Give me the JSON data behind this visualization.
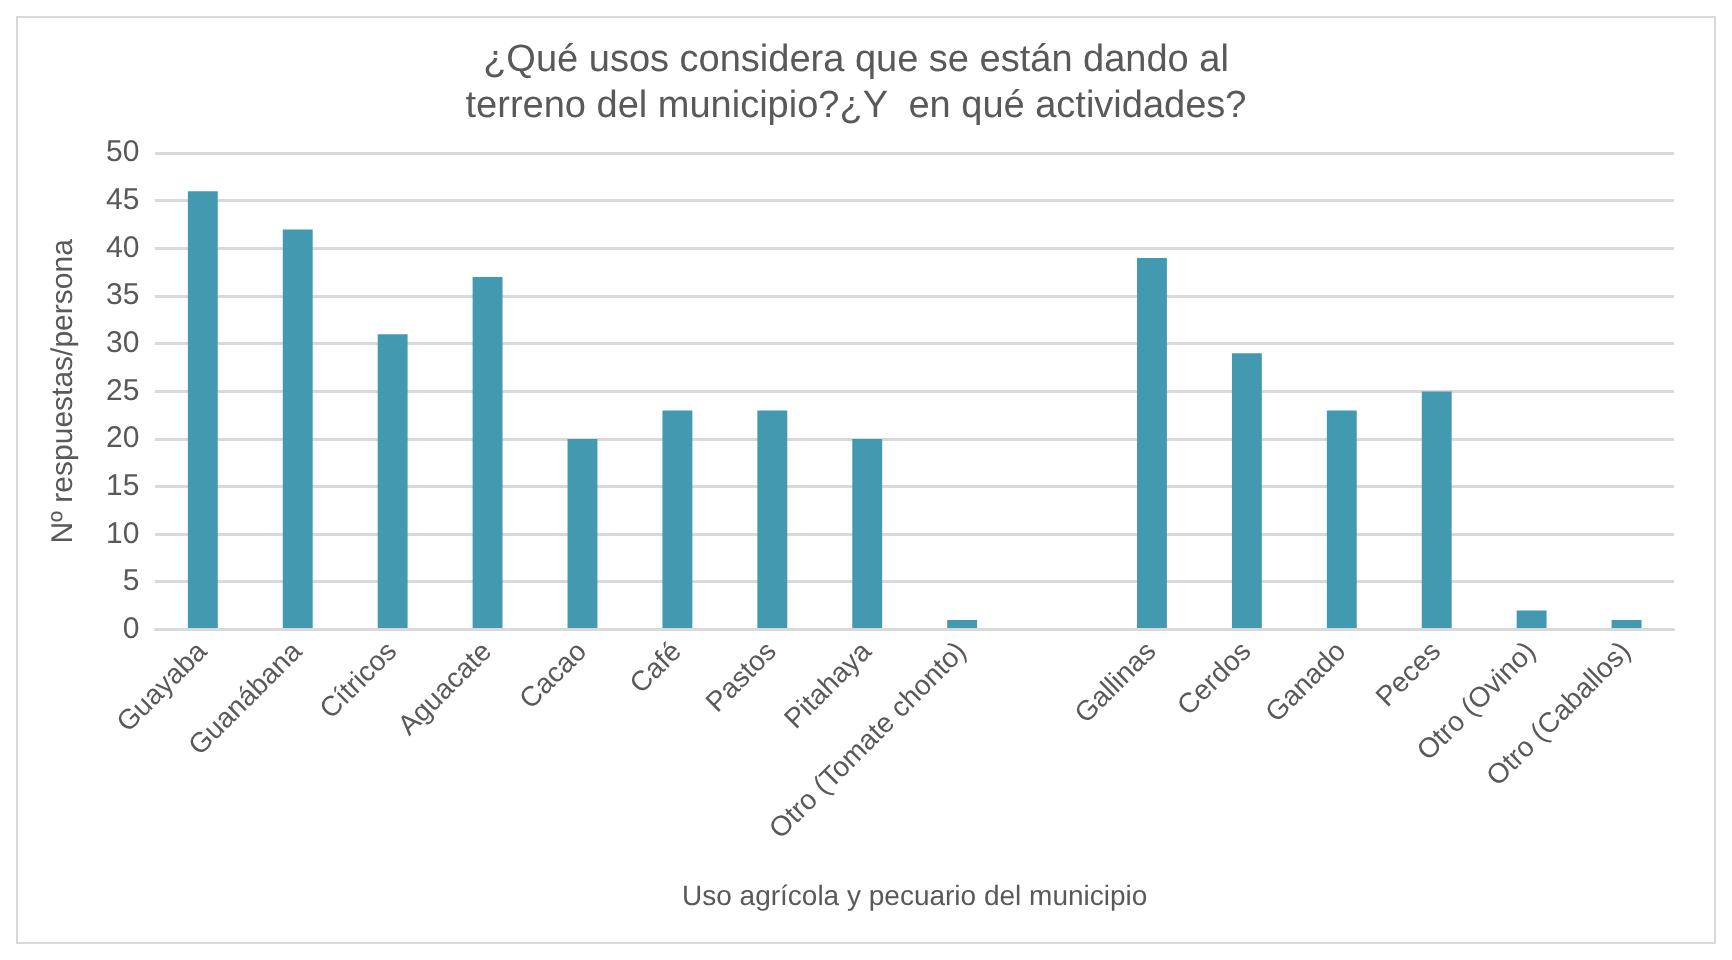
{
  "chart_data": {
    "type": "bar",
    "title": "¿Qué usos considera que se están dando al terreno del municipio?¿Y  en qué actividades?",
    "xlabel": "Uso agrícola y pecuario del municipio",
    "ylabel": "Nº respuestas/persona",
    "categories": [
      "Guayaba",
      "Guanábana",
      "Cítricos",
      "Aguacate",
      "Cacao",
      "Café",
      "Pastos",
      "Pitahaya",
      "Otro (Tomate chonto)",
      null,
      "Gallinas",
      "Cerdos",
      "Ganado",
      "Peces",
      "Otro (Ovino)",
      "Otro (Caballos)"
    ],
    "values": [
      46,
      42,
      31,
      37,
      20,
      23,
      23,
      20,
      1,
      null,
      39,
      29,
      23,
      25,
      2,
      1
    ],
    "color": "#4399b0",
    "ylim": [
      0,
      50
    ],
    "yticks": [
      0,
      5,
      10,
      15,
      20,
      25,
      30,
      35,
      40,
      45,
      50
    ],
    "grid": "y",
    "legend": false
  }
}
